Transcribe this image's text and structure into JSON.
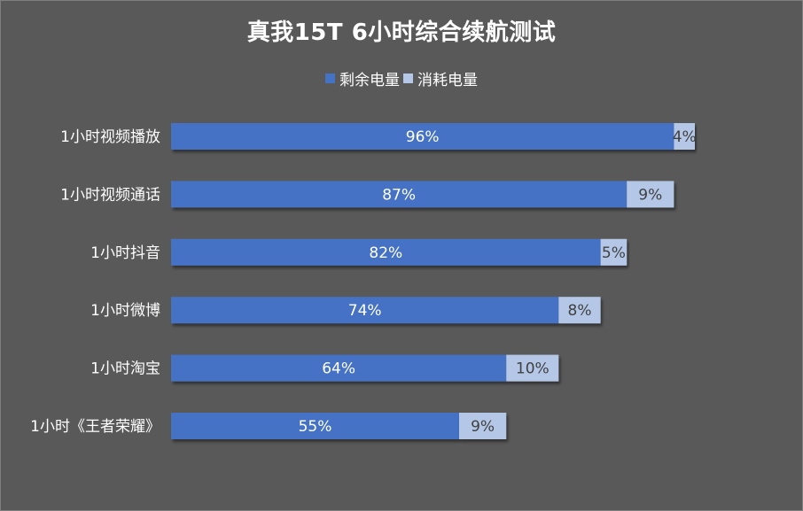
{
  "chart_data": {
    "type": "bar",
    "orientation": "horizontal",
    "stacked": true,
    "title": "真我15T 6小时综合续航测试",
    "legend_position": "top",
    "grid": false,
    "xlim": [
      0,
      100
    ],
    "categories": [
      "1小时视频播放",
      "1小时视频通话",
      "1小时抖音",
      "1小时微博",
      "1小时淘宝",
      "1小时《王者荣耀》"
    ],
    "series": [
      {
        "name": "剩余电量",
        "color": "#4472c4",
        "label_color": "#ffffff",
        "values": [
          96,
          87,
          82,
          74,
          64,
          55
        ],
        "labels": [
          "96%",
          "87%",
          "82%",
          "74%",
          "64%",
          "55%"
        ]
      },
      {
        "name": "消耗电量",
        "color": "#b4c7e7",
        "label_color": "#404040",
        "values": [
          4,
          9,
          5,
          8,
          10,
          9
        ],
        "labels": [
          "4%",
          "9%",
          "5%",
          "8%",
          "10%",
          "9%"
        ]
      }
    ]
  }
}
